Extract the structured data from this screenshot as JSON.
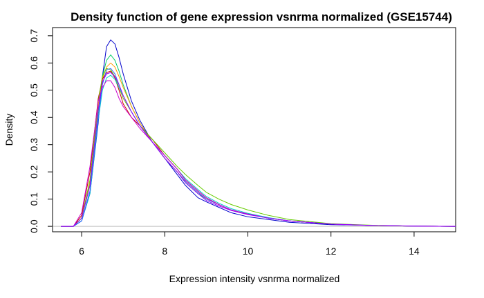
{
  "chart_data": {
    "type": "line",
    "title": "Density function of gene expression vsnrma normalized (GSE15744)",
    "xlabel": "Expression intensity vsnrma normalized",
    "ylabel": "Density",
    "xlim": [
      5.3,
      15.0
    ],
    "ylim": [
      -0.02,
      0.73
    ],
    "x_ticks": [
      6,
      8,
      10,
      12,
      14
    ],
    "x_tick_labels": [
      "6",
      "8",
      "10",
      "12",
      "14"
    ],
    "y_ticks": [
      0.0,
      0.1,
      0.2,
      0.3,
      0.4,
      0.5,
      0.6,
      0.7
    ],
    "y_tick_labels": [
      "0.0",
      "0.1",
      "0.2",
      "0.3",
      "0.4",
      "0.5",
      "0.6",
      "0.7"
    ],
    "baseline": 0,
    "grid": false,
    "legend": "none",
    "series": [
      {
        "color": "#0000cc",
        "values": [
          [
            5.5,
            0
          ],
          [
            5.8,
            0
          ],
          [
            6.0,
            0.02
          ],
          [
            6.2,
            0.12
          ],
          [
            6.4,
            0.38
          ],
          [
            6.5,
            0.55
          ],
          [
            6.6,
            0.66
          ],
          [
            6.7,
            0.685
          ],
          [
            6.8,
            0.67
          ],
          [
            6.9,
            0.62
          ],
          [
            7.0,
            0.56
          ],
          [
            7.2,
            0.46
          ],
          [
            7.4,
            0.39
          ],
          [
            7.7,
            0.31
          ],
          [
            8.0,
            0.25
          ],
          [
            8.3,
            0.19
          ],
          [
            8.5,
            0.15
          ],
          [
            8.8,
            0.105
          ],
          [
            9.0,
            0.09
          ],
          [
            9.3,
            0.07
          ],
          [
            9.6,
            0.05
          ],
          [
            10.0,
            0.035
          ],
          [
            10.5,
            0.025
          ],
          [
            11.0,
            0.015
          ],
          [
            12.0,
            0.006
          ],
          [
            13.0,
            0.003
          ],
          [
            14.0,
            0.001
          ],
          [
            15.0,
            0
          ]
        ]
      },
      {
        "color": "#00cc66",
        "values": [
          [
            5.5,
            0
          ],
          [
            5.8,
            0
          ],
          [
            6.0,
            0.03
          ],
          [
            6.2,
            0.15
          ],
          [
            6.4,
            0.42
          ],
          [
            6.5,
            0.55
          ],
          [
            6.6,
            0.61
          ],
          [
            6.7,
            0.63
          ],
          [
            6.8,
            0.61
          ],
          [
            6.9,
            0.57
          ],
          [
            7.0,
            0.52
          ],
          [
            7.2,
            0.44
          ],
          [
            7.4,
            0.38
          ],
          [
            7.7,
            0.31
          ],
          [
            8.0,
            0.25
          ],
          [
            8.3,
            0.2
          ],
          [
            8.5,
            0.16
          ],
          [
            8.8,
            0.12
          ],
          [
            9.0,
            0.1
          ],
          [
            9.3,
            0.08
          ],
          [
            9.6,
            0.06
          ],
          [
            10.0,
            0.045
          ],
          [
            10.5,
            0.03
          ],
          [
            11.0,
            0.02
          ],
          [
            12.0,
            0.008
          ],
          [
            13.0,
            0.003
          ],
          [
            14.0,
            0.001
          ],
          [
            15.0,
            0
          ]
        ]
      },
      {
        "color": "#ff9900",
        "values": [
          [
            5.5,
            0
          ],
          [
            5.8,
            0
          ],
          [
            6.0,
            0.03
          ],
          [
            6.2,
            0.16
          ],
          [
            6.4,
            0.44
          ],
          [
            6.5,
            0.54
          ],
          [
            6.6,
            0.585
          ],
          [
            6.7,
            0.6
          ],
          [
            6.8,
            0.585
          ],
          [
            6.9,
            0.55
          ],
          [
            7.0,
            0.51
          ],
          [
            7.2,
            0.44
          ],
          [
            7.4,
            0.38
          ],
          [
            7.7,
            0.31
          ],
          [
            8.0,
            0.25
          ],
          [
            8.3,
            0.2
          ],
          [
            8.5,
            0.165
          ],
          [
            8.8,
            0.125
          ],
          [
            9.0,
            0.1
          ],
          [
            9.3,
            0.08
          ],
          [
            9.6,
            0.06
          ],
          [
            10.0,
            0.045
          ],
          [
            10.5,
            0.03
          ],
          [
            11.0,
            0.02
          ],
          [
            12.0,
            0.008
          ],
          [
            13.0,
            0.003
          ],
          [
            14.0,
            0.001
          ],
          [
            15.0,
            0
          ]
        ]
      },
      {
        "color": "#cc0000",
        "values": [
          [
            5.5,
            0
          ],
          [
            5.8,
            0
          ],
          [
            6.0,
            0.04
          ],
          [
            6.2,
            0.2
          ],
          [
            6.4,
            0.47
          ],
          [
            6.5,
            0.54
          ],
          [
            6.6,
            0.565
          ],
          [
            6.7,
            0.57
          ],
          [
            6.8,
            0.545
          ],
          [
            6.9,
            0.5
          ],
          [
            7.0,
            0.45
          ],
          [
            7.2,
            0.4
          ],
          [
            7.4,
            0.37
          ],
          [
            7.7,
            0.32
          ],
          [
            8.0,
            0.26
          ],
          [
            8.3,
            0.21
          ],
          [
            8.5,
            0.17
          ],
          [
            8.8,
            0.13
          ],
          [
            9.0,
            0.105
          ],
          [
            9.3,
            0.08
          ],
          [
            9.6,
            0.06
          ],
          [
            10.0,
            0.045
          ],
          [
            10.5,
            0.03
          ],
          [
            11.0,
            0.02
          ],
          [
            12.0,
            0.008
          ],
          [
            13.0,
            0.003
          ],
          [
            14.0,
            0.001
          ],
          [
            15.0,
            0
          ]
        ]
      },
      {
        "color": "#66cc00",
        "values": [
          [
            5.5,
            0
          ],
          [
            5.8,
            0
          ],
          [
            6.0,
            0.03
          ],
          [
            6.2,
            0.17
          ],
          [
            6.4,
            0.46
          ],
          [
            6.5,
            0.55
          ],
          [
            6.6,
            0.58
          ],
          [
            6.7,
            0.575
          ],
          [
            6.8,
            0.55
          ],
          [
            6.9,
            0.51
          ],
          [
            7.0,
            0.47
          ],
          [
            7.2,
            0.42
          ],
          [
            7.4,
            0.37
          ],
          [
            7.7,
            0.32
          ],
          [
            8.0,
            0.27
          ],
          [
            8.3,
            0.22
          ],
          [
            8.5,
            0.19
          ],
          [
            8.8,
            0.15
          ],
          [
            9.0,
            0.125
          ],
          [
            9.3,
            0.1
          ],
          [
            9.6,
            0.08
          ],
          [
            10.0,
            0.06
          ],
          [
            10.5,
            0.04
          ],
          [
            11.0,
            0.025
          ],
          [
            12.0,
            0.01
          ],
          [
            13.0,
            0.004
          ],
          [
            14.0,
            0.001
          ],
          [
            15.0,
            0
          ]
        ]
      },
      {
        "color": "#00cccc",
        "values": [
          [
            5.5,
            0
          ],
          [
            5.8,
            0
          ],
          [
            6.0,
            0.02
          ],
          [
            6.2,
            0.12
          ],
          [
            6.4,
            0.39
          ],
          [
            6.5,
            0.5
          ],
          [
            6.6,
            0.545
          ],
          [
            6.7,
            0.555
          ],
          [
            6.8,
            0.54
          ],
          [
            6.9,
            0.51
          ],
          [
            7.0,
            0.48
          ],
          [
            7.2,
            0.42
          ],
          [
            7.4,
            0.37
          ],
          [
            7.7,
            0.31
          ],
          [
            8.0,
            0.26
          ],
          [
            8.3,
            0.21
          ],
          [
            8.5,
            0.175
          ],
          [
            8.8,
            0.135
          ],
          [
            9.0,
            0.11
          ],
          [
            9.3,
            0.085
          ],
          [
            9.6,
            0.065
          ],
          [
            10.0,
            0.048
          ],
          [
            10.5,
            0.032
          ],
          [
            11.0,
            0.02
          ],
          [
            12.0,
            0.008
          ],
          [
            13.0,
            0.003
          ],
          [
            14.0,
            0.001
          ],
          [
            15.0,
            0
          ]
        ]
      },
      {
        "color": "#3366ff",
        "values": [
          [
            5.5,
            0
          ],
          [
            5.8,
            0
          ],
          [
            6.0,
            0.02
          ],
          [
            6.2,
            0.13
          ],
          [
            6.4,
            0.4
          ],
          [
            6.5,
            0.52
          ],
          [
            6.6,
            0.575
          ],
          [
            6.7,
            0.58
          ],
          [
            6.8,
            0.56
          ],
          [
            6.9,
            0.52
          ],
          [
            7.0,
            0.48
          ],
          [
            7.2,
            0.42
          ],
          [
            7.4,
            0.37
          ],
          [
            7.7,
            0.31
          ],
          [
            8.0,
            0.25
          ],
          [
            8.3,
            0.2
          ],
          [
            8.5,
            0.165
          ],
          [
            8.8,
            0.125
          ],
          [
            9.0,
            0.1
          ],
          [
            9.3,
            0.08
          ],
          [
            9.6,
            0.06
          ],
          [
            10.0,
            0.045
          ],
          [
            10.5,
            0.03
          ],
          [
            11.0,
            0.02
          ],
          [
            12.0,
            0.008
          ],
          [
            13.0,
            0.003
          ],
          [
            14.0,
            0.001
          ],
          [
            15.0,
            0
          ]
        ]
      },
      {
        "color": "#cc00cc",
        "values": [
          [
            5.5,
            0
          ],
          [
            5.8,
            0
          ],
          [
            6.0,
            0.05
          ],
          [
            6.2,
            0.22
          ],
          [
            6.4,
            0.46
          ],
          [
            6.5,
            0.51
          ],
          [
            6.6,
            0.535
          ],
          [
            6.7,
            0.535
          ],
          [
            6.8,
            0.51
          ],
          [
            6.9,
            0.47
          ],
          [
            7.0,
            0.44
          ],
          [
            7.2,
            0.4
          ],
          [
            7.4,
            0.36
          ],
          [
            7.7,
            0.31
          ],
          [
            8.0,
            0.26
          ],
          [
            8.3,
            0.21
          ],
          [
            8.5,
            0.17
          ],
          [
            8.8,
            0.13
          ],
          [
            9.0,
            0.105
          ],
          [
            9.3,
            0.08
          ],
          [
            9.6,
            0.06
          ],
          [
            10.0,
            0.045
          ],
          [
            10.5,
            0.03
          ],
          [
            11.0,
            0.02
          ],
          [
            12.0,
            0.008
          ],
          [
            13.0,
            0.003
          ],
          [
            14.0,
            0.001
          ],
          [
            15.0,
            0
          ]
        ]
      },
      {
        "color": "#9900ff",
        "values": [
          [
            5.5,
            0
          ],
          [
            5.8,
            0
          ],
          [
            6.0,
            0.03
          ],
          [
            6.2,
            0.15
          ],
          [
            6.4,
            0.43
          ],
          [
            6.5,
            0.53
          ],
          [
            6.6,
            0.56
          ],
          [
            6.7,
            0.565
          ],
          [
            6.8,
            0.55
          ],
          [
            6.9,
            0.52
          ],
          [
            7.0,
            0.48
          ],
          [
            7.2,
            0.42
          ],
          [
            7.4,
            0.37
          ],
          [
            7.7,
            0.31
          ],
          [
            8.0,
            0.25
          ],
          [
            8.3,
            0.2
          ],
          [
            8.5,
            0.16
          ],
          [
            8.8,
            0.12
          ],
          [
            9.0,
            0.095
          ],
          [
            9.3,
            0.075
          ],
          [
            9.6,
            0.058
          ],
          [
            10.0,
            0.043
          ],
          [
            10.5,
            0.03
          ],
          [
            11.0,
            0.02
          ],
          [
            12.0,
            0.008
          ],
          [
            13.0,
            0.003
          ],
          [
            14.0,
            0.001
          ],
          [
            15.0,
            0
          ]
        ]
      }
    ]
  }
}
